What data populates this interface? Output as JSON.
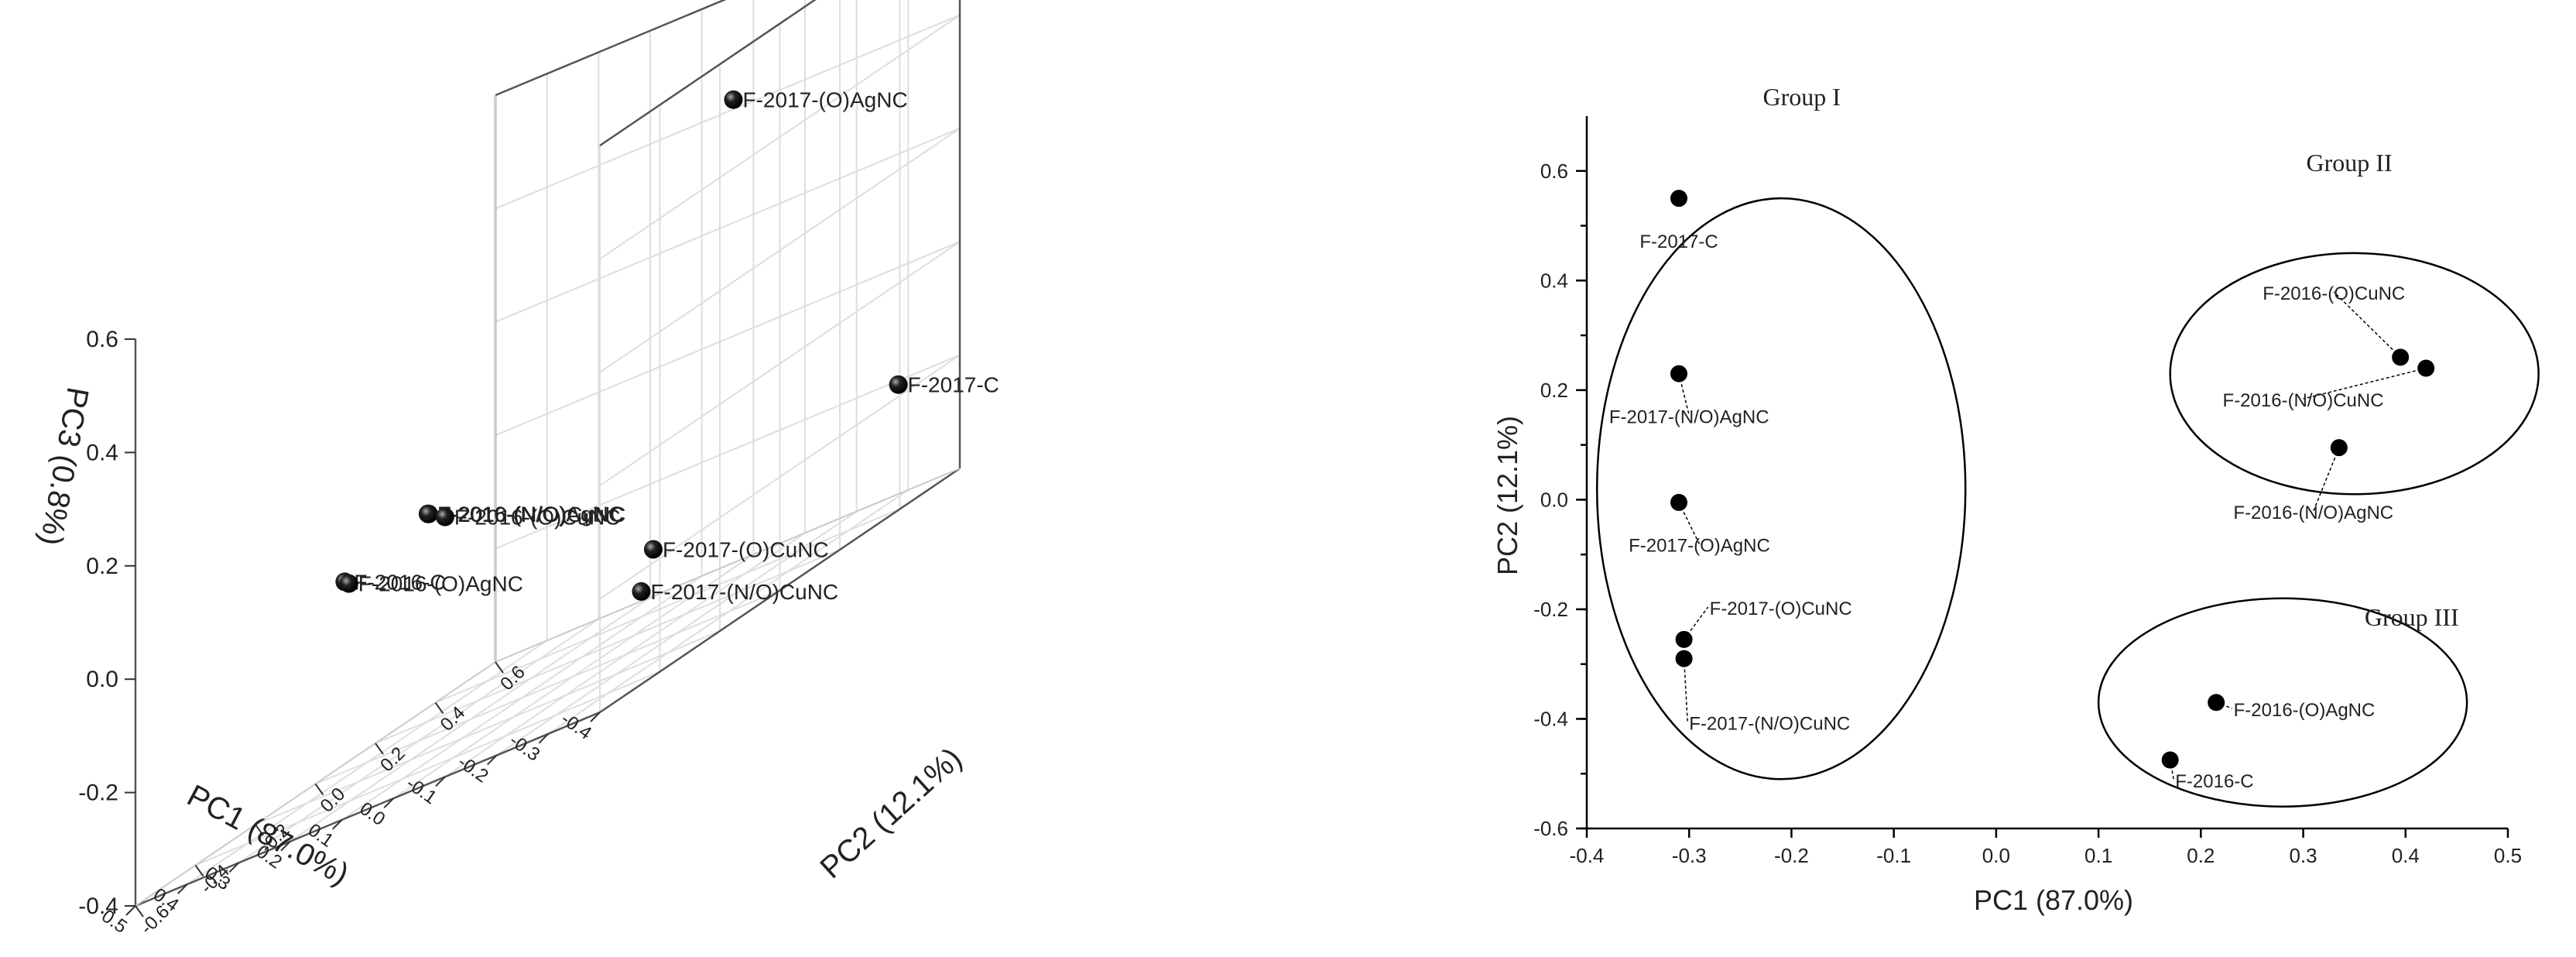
{
  "chart_data": [
    {
      "type": "scatter",
      "dimensions": 3,
      "xlabel": "PC1 (87.0%)",
      "ylabel": "PC2 (12.1%)",
      "zlabel": "PC3 (0.8%)",
      "xlim": [
        -0.4,
        0.5
      ],
      "ylim": [
        -0.6,
        0.6
      ],
      "zlim": [
        -0.4,
        0.6
      ],
      "x_ticks": [
        "-0.4",
        "-0.3",
        "-0.2",
        "-0.1",
        "0.0",
        "0.1",
        "0.2",
        "0.3",
        "0.4",
        "0.5"
      ],
      "y_ticks": [
        "-0.6",
        "-0.4",
        "-0.2",
        "0.0",
        "0.2",
        "0.4",
        "0.6"
      ],
      "z_ticks": [
        "-0.4",
        "-0.2",
        "0.0",
        "0.2",
        "0.4",
        "0.6"
      ],
      "grid": true,
      "marker_color": "#000000",
      "points": [
        {
          "label": "F-2017-(N/O)AgNC",
          "x": -0.31,
          "y": 0.23,
          "z": 0.65
        },
        {
          "label": "F-2017-(O)AgNC",
          "x": -0.31,
          "y": 0.0,
          "z": 0.5
        },
        {
          "label": "F-2016-C",
          "x": 0.17,
          "y": -0.47,
          "z": 0.0
        },
        {
          "label": "F-2016-(O)AgNC",
          "x": 0.22,
          "y": -0.37,
          "z": -0.02
        },
        {
          "label": "F-2016-(N/O)AgNC",
          "x": 0.34,
          "y": 0.1,
          "z": -0.02
        },
        {
          "label": "F-2016-(N/O)CuNC",
          "x": 0.42,
          "y": 0.24,
          "z": -0.04
        },
        {
          "label": "F-2016-(O)CuNC",
          "x": 0.4,
          "y": 0.26,
          "z": -0.06
        },
        {
          "label": "F-2017-(O)CuNC",
          "x": -0.3,
          "y": -0.25,
          "z": -0.2
        },
        {
          "label": "F-2017-(N/O)CuNC",
          "x": -0.3,
          "y": -0.29,
          "z": -0.26
        },
        {
          "label": "F-2017-C",
          "x": -0.31,
          "y": 0.55,
          "z": -0.2
        }
      ]
    },
    {
      "type": "scatter",
      "xlabel": "PC1 (87.0%)",
      "ylabel": "PC2 (12.1%)",
      "xlim": [
        -0.4,
        0.5
      ],
      "ylim": [
        -0.6,
        0.7
      ],
      "x_ticks": [
        "-0.4",
        "-0.3",
        "-0.2",
        "-0.1",
        "0.0",
        "0.1",
        "0.2",
        "0.3",
        "0.4",
        "0.5"
      ],
      "y_ticks": [
        "0.6",
        "0.4",
        "0.2",
        "0.0",
        "-0.2",
        "-0.4",
        "-0.6"
      ],
      "grid": false,
      "marker_color": "#000000",
      "groups": [
        {
          "name": "Group I",
          "cx": -0.21,
          "cy": 0.02,
          "rx": 0.18,
          "ry": 0.53
        },
        {
          "name": "Group II",
          "cx": 0.35,
          "cy": 0.23,
          "rx": 0.18,
          "ry": 0.22
        },
        {
          "name": "Group III",
          "cx": 0.28,
          "cy": -0.37,
          "rx": 0.18,
          "ry": 0.19
        }
      ],
      "points": [
        {
          "label": "F-2017-C",
          "x": -0.31,
          "y": 0.55
        },
        {
          "label": "F-2017-(N/O)AgNC",
          "x": -0.31,
          "y": 0.23
        },
        {
          "label": "F-2017-(O)AgNC",
          "x": -0.31,
          "y": -0.005
        },
        {
          "label": "F-2017-(O)CuNC",
          "x": -0.305,
          "y": -0.255
        },
        {
          "label": "F-2017-(N/O)CuNC",
          "x": -0.305,
          "y": -0.29
        },
        {
          "label": "F-2016-(O)CuNC",
          "x": 0.395,
          "y": 0.26
        },
        {
          "label": "F-2016-(N/O)CuNC",
          "x": 0.42,
          "y": 0.24
        },
        {
          "label": "F-2016-(N/O)AgNC",
          "x": 0.335,
          "y": 0.095
        },
        {
          "label": "F-2016-(O)AgNC",
          "x": 0.215,
          "y": -0.37
        },
        {
          "label": "F-2016-C",
          "x": 0.17,
          "y": -0.475
        }
      ]
    }
  ]
}
